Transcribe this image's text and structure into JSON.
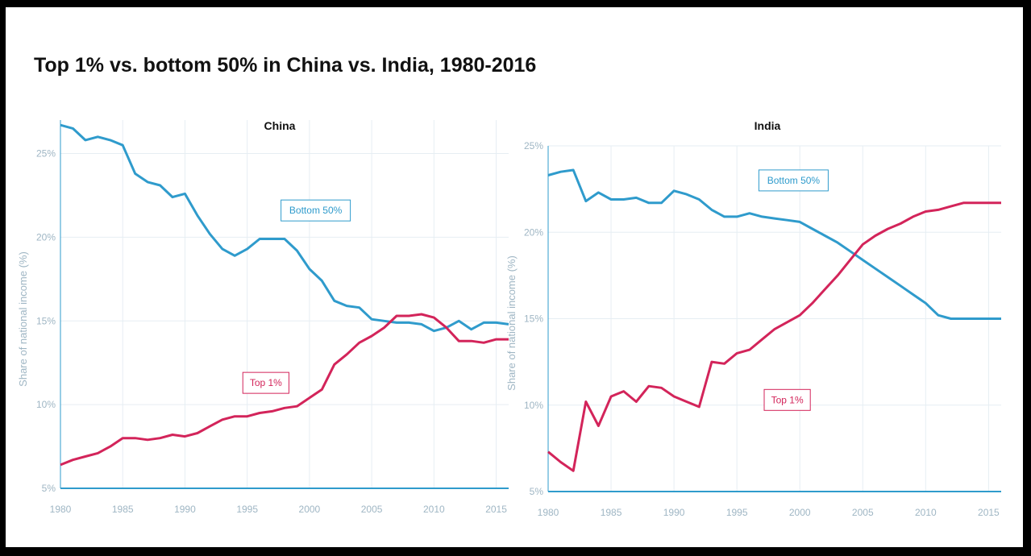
{
  "title": "Top 1% vs. bottom 50% in China vs. India, 1980-2016",
  "colors": {
    "bottom50": "#2f9bcc",
    "top1": "#d3245a",
    "grid": "#e6eef3",
    "axis": "#2f9bcc",
    "tick": "#9fb6c4"
  },
  "chart_data": [
    {
      "type": "line",
      "title": "China",
      "ylabel": "Share of national income (%)",
      "xlim": [
        1980,
        2016
      ],
      "ylim": [
        5,
        27
      ],
      "xticks": [
        1980,
        1985,
        1990,
        1995,
        2000,
        2005,
        2010,
        2015
      ],
      "xtick_labels": [
        "1980",
        "1985",
        "1990",
        "1995",
        "2000",
        "2005",
        "2010",
        "2015"
      ],
      "yticks": [
        5,
        10,
        15,
        20,
        25
      ],
      "ytick_labels": [
        "5%",
        "10%",
        "15%",
        "20%",
        "25%"
      ],
      "x": [
        1980,
        1981,
        1982,
        1983,
        1984,
        1985,
        1986,
        1987,
        1988,
        1989,
        1990,
        1991,
        1992,
        1993,
        1994,
        1995,
        1996,
        1997,
        1998,
        1999,
        2000,
        2001,
        2002,
        2003,
        2004,
        2005,
        2006,
        2007,
        2008,
        2009,
        2010,
        2011,
        2012,
        2013,
        2014,
        2015,
        2016
      ],
      "series": [
        {
          "name": "Bottom 50%",
          "color": "#2f9bcc",
          "values": [
            26.7,
            26.5,
            25.8,
            26.0,
            25.8,
            25.5,
            23.8,
            23.3,
            23.1,
            22.4,
            22.6,
            21.3,
            20.2,
            19.3,
            18.9,
            19.3,
            19.9,
            19.9,
            19.9,
            19.2,
            18.1,
            17.4,
            16.2,
            15.9,
            15.8,
            15.1,
            15.0,
            14.9,
            14.9,
            14.8,
            14.4,
            14.6,
            15.0,
            14.5,
            14.9,
            14.9,
            14.8
          ],
          "label_at": [
            2000.5,
            21.6
          ]
        },
        {
          "name": "Top 1%",
          "color": "#d3245a",
          "values": [
            6.4,
            6.7,
            6.9,
            7.1,
            7.5,
            8.0,
            8.0,
            7.9,
            8.0,
            8.2,
            8.1,
            8.3,
            8.7,
            9.1,
            9.3,
            9.3,
            9.5,
            9.6,
            9.8,
            9.9,
            10.4,
            10.9,
            12.4,
            13.0,
            13.7,
            14.1,
            14.6,
            15.3,
            15.3,
            15.4,
            15.2,
            14.6,
            13.8,
            13.8,
            13.7,
            13.9,
            13.9
          ],
          "label_at": [
            1996.5,
            11.3
          ]
        }
      ]
    },
    {
      "type": "line",
      "title": "India",
      "ylabel": "Share of national income (%)",
      "xlim": [
        1980,
        2016
      ],
      "ylim": [
        5,
        25
      ],
      "xticks": [
        1980,
        1985,
        1990,
        1995,
        2000,
        2005,
        2010,
        2015
      ],
      "xtick_labels": [
        "1980",
        "1985",
        "1990",
        "1995",
        "2000",
        "2005",
        "2010",
        "2015"
      ],
      "yticks": [
        5,
        10,
        15,
        20,
        25
      ],
      "ytick_labels": [
        "5%",
        "10%",
        "15%",
        "20%",
        "25%"
      ],
      "x": [
        1980,
        1981,
        1982,
        1983,
        1984,
        1985,
        1986,
        1987,
        1988,
        1989,
        1990,
        1991,
        1992,
        1993,
        1994,
        1995,
        1996,
        1997,
        1998,
        1999,
        2000,
        2001,
        2002,
        2003,
        2004,
        2005,
        2006,
        2007,
        2008,
        2009,
        2010,
        2011,
        2012,
        2013,
        2014,
        2015,
        2016
      ],
      "series": [
        {
          "name": "Bottom 50%",
          "color": "#2f9bcc",
          "values": [
            23.3,
            23.5,
            23.6,
            21.8,
            22.3,
            21.9,
            21.9,
            22.0,
            21.7,
            21.7,
            22.4,
            22.2,
            21.9,
            21.3,
            20.9,
            20.9,
            21.1,
            20.9,
            20.8,
            20.7,
            20.6,
            20.2,
            19.8,
            19.4,
            18.9,
            18.4,
            17.9,
            17.4,
            16.9,
            16.4,
            15.9,
            15.2,
            15.0,
            15.0,
            15.0,
            15.0,
            15.0
          ],
          "label_at": [
            1999.5,
            23.0
          ]
        },
        {
          "name": "Top 1%",
          "color": "#d3245a",
          "values": [
            7.3,
            6.7,
            6.2,
            10.2,
            8.8,
            10.5,
            10.8,
            10.2,
            11.1,
            11.0,
            10.5,
            10.2,
            9.9,
            12.5,
            12.4,
            13.0,
            13.2,
            13.8,
            14.4,
            14.8,
            15.2,
            15.9,
            16.7,
            17.5,
            18.4,
            19.3,
            19.8,
            20.2,
            20.5,
            20.9,
            21.2,
            21.3,
            21.5,
            21.7,
            21.7,
            21.7,
            21.7
          ],
          "label_at": [
            1999.0,
            10.3
          ]
        }
      ]
    }
  ]
}
